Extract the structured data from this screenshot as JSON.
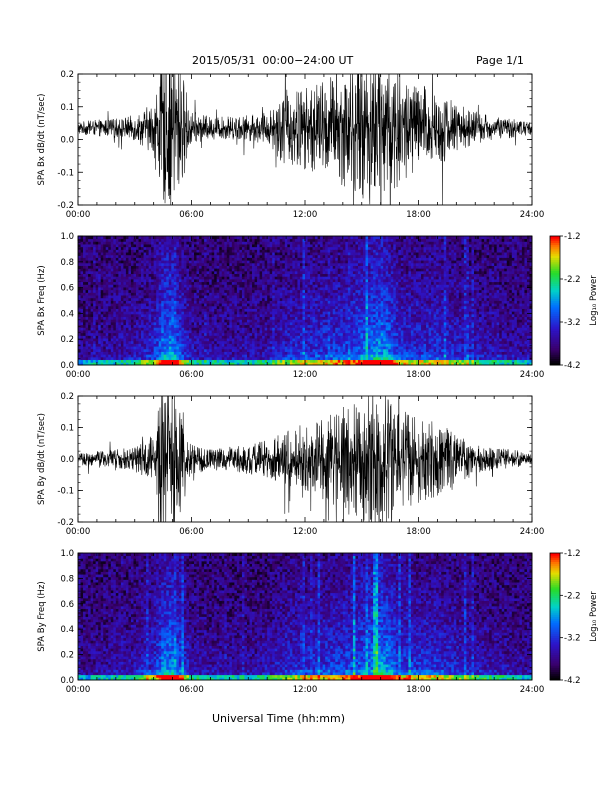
{
  "header": {
    "title": "2015/05/31  00:00−24:00 UT",
    "page": "Page 1/1"
  },
  "footer": {
    "xlabel": "Universal Time (hh:mm)"
  },
  "chart_data": [
    {
      "type": "line",
      "ylabel": "SPA Bx dB/dt (nT/sec)",
      "xlim": [
        "00:00",
        "24:00"
      ],
      "xticks": [
        "00:00",
        "06:00",
        "12:00",
        "18:00",
        "24:00"
      ],
      "ylim": [
        -0.2,
        0.2
      ],
      "yticks": [
        "-0.2",
        "-0.1",
        "0.0",
        "0.1",
        "0.2"
      ],
      "envelope_hours": [
        0,
        1,
        2,
        3,
        4,
        4.5,
        5,
        5.5,
        6,
        7,
        8,
        9,
        10,
        11,
        12,
        13,
        14,
        15,
        15.5,
        16,
        16.5,
        17,
        18,
        19,
        20,
        21,
        22,
        23,
        24
      ],
      "envelope_amp": [
        0.02,
        0.025,
        0.03,
        0.04,
        0.08,
        0.24,
        0.26,
        0.18,
        0.05,
        0.035,
        0.035,
        0.04,
        0.05,
        0.12,
        0.13,
        0.15,
        0.18,
        0.22,
        0.25,
        0.24,
        0.23,
        0.18,
        0.14,
        0.12,
        0.08,
        0.05,
        0.035,
        0.03,
        0.02
      ],
      "offset": 0.035
    },
    {
      "type": "heatmap",
      "ylabel": "SPA Bx Freq (Hz)",
      "xlim": [
        "00:00",
        "24:00"
      ],
      "xticks": [
        "00:00",
        "06:00",
        "12:00",
        "18:00",
        "24:00"
      ],
      "ylim": [
        0.0,
        1.0
      ],
      "yticks": [
        "0.0",
        "0.2",
        "0.4",
        "0.6",
        "0.8",
        "1.0"
      ],
      "colorbar": {
        "label": "Log₁₀ Power",
        "range": [
          -4.2,
          -1.2
        ],
        "ticks": [
          "-1.2",
          "-2.2",
          "-3.2",
          "-4.2"
        ]
      },
      "activity_hours": [
        0,
        1,
        2,
        3,
        4,
        4.5,
        5,
        5.5,
        6,
        7,
        8,
        9,
        10,
        11,
        12,
        13,
        14,
        15,
        15.5,
        16,
        16.5,
        17,
        18,
        19,
        20,
        21,
        22,
        23,
        24
      ],
      "activity_level": [
        0.15,
        0.2,
        0.25,
        0.3,
        0.5,
        0.85,
        0.9,
        0.6,
        0.3,
        0.25,
        0.25,
        0.25,
        0.3,
        0.45,
        0.5,
        0.55,
        0.6,
        0.75,
        0.85,
        0.95,
        0.8,
        0.55,
        0.5,
        0.55,
        0.45,
        0.35,
        0.3,
        0.25,
        0.2
      ]
    },
    {
      "type": "line",
      "ylabel": "SPA By dB/dt (nT/sec)",
      "xlim": [
        "00:00",
        "24:00"
      ],
      "xticks": [
        "00:00",
        "06:00",
        "12:00",
        "18:00",
        "24:00"
      ],
      "ylim": [
        -0.2,
        0.2
      ],
      "yticks": [
        "-0.2",
        "-0.1",
        "0.0",
        "0.1",
        "0.2"
      ],
      "envelope_hours": [
        0,
        1,
        2,
        3,
        4,
        4.5,
        5,
        5.5,
        6,
        7,
        8,
        9,
        10,
        11,
        12,
        13,
        14,
        15,
        15.5,
        16,
        16.5,
        17,
        18,
        19,
        20,
        21,
        22,
        23,
        24
      ],
      "envelope_amp": [
        0.02,
        0.025,
        0.03,
        0.04,
        0.08,
        0.24,
        0.26,
        0.18,
        0.05,
        0.035,
        0.04,
        0.05,
        0.06,
        0.09,
        0.1,
        0.13,
        0.17,
        0.2,
        0.24,
        0.25,
        0.23,
        0.18,
        0.14,
        0.12,
        0.08,
        0.05,
        0.035,
        0.03,
        0.02
      ],
      "offset": 0.0
    },
    {
      "type": "heatmap",
      "ylabel": "SPA By Freq (Hz)",
      "xlim": [
        "00:00",
        "24:00"
      ],
      "xticks": [
        "00:00",
        "06:00",
        "12:00",
        "18:00",
        "24:00"
      ],
      "ylim": [
        0.0,
        1.0
      ],
      "yticks": [
        "0.0",
        "0.2",
        "0.4",
        "0.6",
        "0.8",
        "1.0"
      ],
      "colorbar": {
        "label": "Log₁₀ Power",
        "range": [
          -4.2,
          -1.2
        ],
        "ticks": [
          "-1.2",
          "-2.2",
          "-3.2",
          "-4.2"
        ]
      },
      "activity_hours": [
        0,
        1,
        2,
        3,
        4,
        4.5,
        5,
        5.5,
        6,
        7,
        8,
        9,
        10,
        11,
        12,
        13,
        14,
        15,
        15.5,
        16,
        16.5,
        17,
        18,
        19,
        20,
        21,
        22,
        23,
        24
      ],
      "activity_level": [
        0.15,
        0.2,
        0.25,
        0.3,
        0.5,
        0.85,
        0.9,
        0.6,
        0.3,
        0.25,
        0.25,
        0.25,
        0.3,
        0.45,
        0.5,
        0.55,
        0.6,
        0.75,
        0.85,
        0.95,
        0.85,
        0.6,
        0.55,
        0.55,
        0.45,
        0.35,
        0.3,
        0.25,
        0.2
      ]
    }
  ]
}
